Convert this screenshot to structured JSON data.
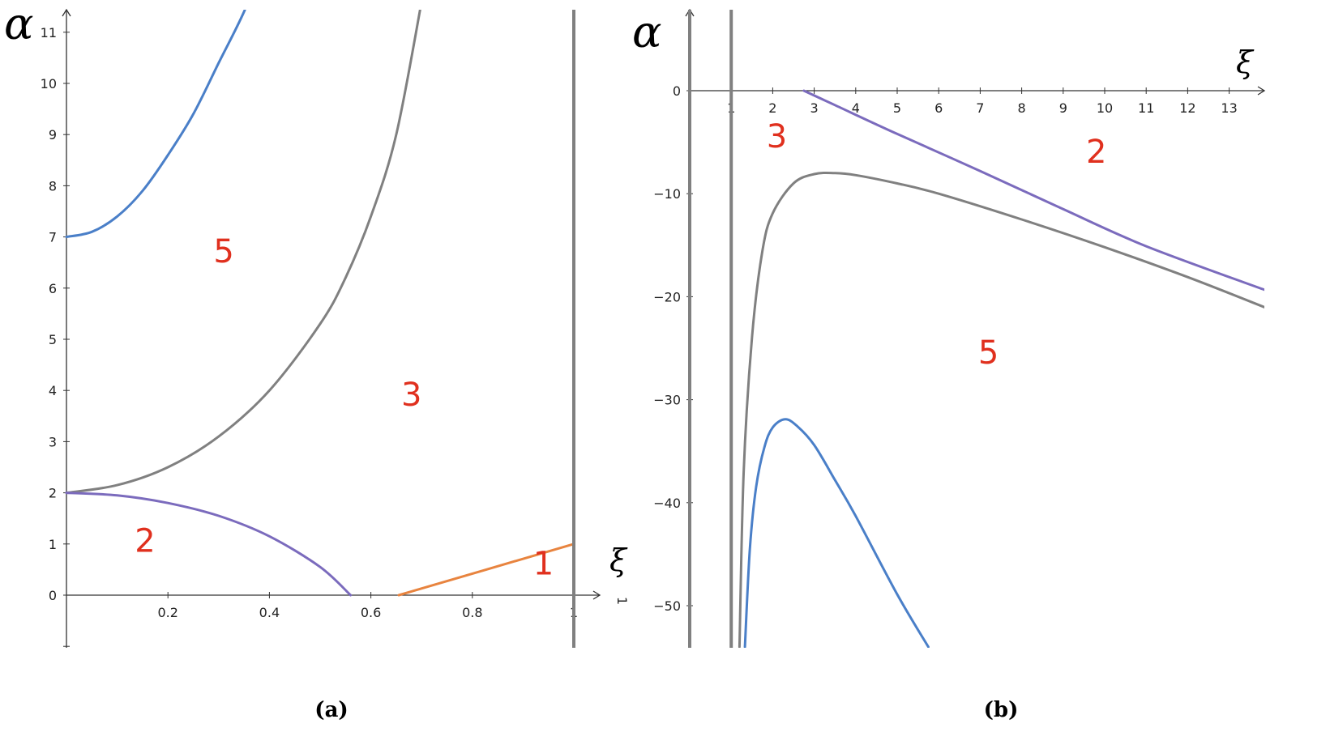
{
  "chart_data": [
    {
      "panel": "(a)",
      "type": "line",
      "xlabel": "ξ",
      "ylabel": "α",
      "xlim": [
        0,
        1.1
      ],
      "ylim": [
        -1,
        11.5
      ],
      "x_ticks": [
        0.2,
        0.4,
        0.6,
        0.8,
        1
      ],
      "x_tick_labels": [
        "0.2",
        "0.4",
        "0.6",
        "0.8",
        "1"
      ],
      "y_ticks": [
        0,
        1,
        2,
        3,
        4,
        5,
        6,
        7,
        8,
        9,
        10,
        11
      ],
      "y_tick_labels": [
        "0",
        "1",
        "2",
        "3",
        "4",
        "5",
        "6",
        "7",
        "8",
        "9",
        "10",
        "11"
      ],
      "extra_axis_label": "1",
      "series": [
        {
          "color": "#4a7fc8",
          "x": [
            0,
            0.05,
            0.1,
            0.15,
            0.2,
            0.25,
            0.3,
            0.35,
            0.4
          ],
          "y": [
            7.0,
            7.1,
            7.4,
            7.9,
            8.6,
            9.4,
            10.4,
            11.4,
            12.6
          ]
        },
        {
          "color": "#808080",
          "x": [
            0,
            0.1,
            0.2,
            0.3,
            0.4,
            0.5,
            0.55,
            0.6,
            0.65,
            0.7
          ],
          "y": [
            2.0,
            2.15,
            2.5,
            3.1,
            4.0,
            5.3,
            6.2,
            7.4,
            9.0,
            11.6
          ]
        },
        {
          "color": "#7b6bbd",
          "x": [
            0,
            0.1,
            0.2,
            0.3,
            0.4,
            0.5,
            0.56
          ],
          "y": [
            2.0,
            1.95,
            1.8,
            1.55,
            1.15,
            0.55,
            0.0
          ]
        },
        {
          "color": "#e8843f",
          "x": [
            0.655,
            1.0
          ],
          "y": [
            0.0,
            1.0
          ]
        },
        {
          "color": "#808080",
          "type": "vline",
          "x": [
            1.0,
            1.0
          ],
          "y": [
            -1,
            11.5
          ]
        }
      ],
      "region_labels": [
        {
          "text": "5",
          "x": 0.31,
          "y": 6.5
        },
        {
          "text": "3",
          "x": 0.68,
          "y": 3.7
        },
        {
          "text": "2",
          "x": 0.155,
          "y": 0.85
        },
        {
          "text": "1",
          "x": 0.94,
          "y": 0.4
        }
      ]
    },
    {
      "panel": "(b)",
      "type": "line",
      "xlabel": "ξ",
      "ylabel": "α",
      "xlim": [
        -0.9,
        13.9
      ],
      "ylim": [
        -54,
        8.5
      ],
      "x_ticks": [
        1,
        2,
        3,
        4,
        5,
        6,
        7,
        8,
        9,
        10,
        11,
        12,
        13
      ],
      "x_tick_labels": [
        "1",
        "2",
        "3",
        "4",
        "5",
        "6",
        "7",
        "8",
        "9",
        "10",
        "11",
        "12",
        "13"
      ],
      "y_ticks": [
        0,
        -10,
        -20,
        -30,
        -40,
        -50
      ],
      "y_tick_labels": [
        "0",
        "−10",
        "−20",
        "−30",
        "−40",
        "−50"
      ],
      "series": [
        {
          "color": "#7b6bbd",
          "x": [
            2.75,
            3.5,
            5,
            7,
            9,
            11,
            13.9
          ],
          "y": [
            0.0,
            -1.4,
            -4.2,
            -7.8,
            -11.5,
            -15.1,
            -19.4
          ]
        },
        {
          "color": "#808080",
          "x": [
            1.2,
            1.3,
            1.5,
            1.75,
            2.0,
            2.5,
            3.0,
            3.5,
            4,
            5,
            6,
            8,
            10,
            12,
            13.9
          ],
          "y": [
            -54,
            -37,
            -24,
            -15.6,
            -11.9,
            -9.0,
            -8.1,
            -8.0,
            -8.2,
            -9.0,
            -10.0,
            -12.5,
            -15.2,
            -18.1,
            -21.1
          ]
        },
        {
          "color": "#4a7fc8",
          "x": [
            1.33,
            1.45,
            1.6,
            1.8,
            2.0,
            2.3,
            2.6,
            3.0,
            3.5,
            4.0,
            5.0,
            5.75
          ],
          "y": [
            -54,
            -44.5,
            -38.5,
            -34.6,
            -32.7,
            -31.9,
            -32.6,
            -34.4,
            -37.8,
            -41.3,
            -48.9,
            -54
          ]
        },
        {
          "color": "#808080",
          "type": "vline",
          "x": [
            0.0,
            0.0
          ],
          "y": [
            -54,
            8.5
          ]
        },
        {
          "color": "#808080",
          "type": "vline",
          "x": [
            1.0,
            1.0
          ],
          "y": [
            -54,
            8.5
          ]
        }
      ],
      "region_labels": [
        {
          "text": "3",
          "x": 2.1,
          "y": -5.5
        },
        {
          "text": "2",
          "x": 9.8,
          "y": -7.0
        },
        {
          "text": "5",
          "x": 7.2,
          "y": -26.5
        }
      ]
    }
  ],
  "captions": [
    "(a)",
    "(b)"
  ]
}
